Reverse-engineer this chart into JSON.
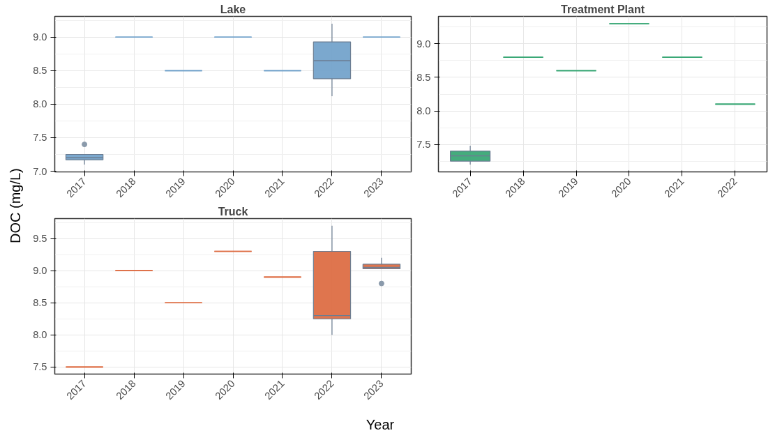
{
  "chart_data": [
    {
      "type": "box",
      "title": "Lake",
      "ylabel": "DOC (mg/L)",
      "categories": [
        "2017",
        "2018",
        "2019",
        "2020",
        "2021",
        "2022",
        "2023"
      ],
      "color": "#74a3cb",
      "ylim": [
        6.99,
        9.31
      ],
      "yticks": [
        {
          "value": 7.0,
          "label": "7.0"
        },
        {
          "value": 7.5,
          "label": "7.5"
        },
        {
          "value": 8.0,
          "label": "8.0"
        },
        {
          "value": 8.5,
          "label": "8.5"
        },
        {
          "value": 9.0,
          "label": "9.0"
        }
      ],
      "grid": true,
      "boxes": [
        {
          "low": 7.1,
          "q1": 7.17,
          "median": 7.2,
          "q3": 7.25,
          "high": 7.25,
          "outliers": [
            7.4
          ]
        },
        {
          "low": 9.0,
          "q1": 9.0,
          "median": 9.0,
          "q3": 9.0,
          "high": 9.0
        },
        {
          "low": 8.5,
          "q1": 8.5,
          "median": 8.5,
          "q3": 8.5,
          "high": 8.5
        },
        {
          "low": 9.0,
          "q1": 9.0,
          "median": 9.0,
          "q3": 9.0,
          "high": 9.0
        },
        {
          "low": 8.5,
          "q1": 8.5,
          "median": 8.5,
          "q3": 8.5,
          "high": 8.5
        },
        {
          "low": 8.12,
          "q1": 8.38,
          "median": 8.65,
          "q3": 8.93,
          "high": 9.2
        },
        {
          "low": 9.0,
          "q1": 9.0,
          "median": 9.0,
          "q3": 9.0,
          "high": 9.0
        }
      ]
    },
    {
      "type": "box",
      "title": "Treatment Plant",
      "categories": [
        "2017",
        "2018",
        "2019",
        "2020",
        "2021",
        "2022"
      ],
      "color": "#3aa876",
      "ylim": [
        7.09,
        9.41
      ],
      "yticks": [
        {
          "value": 7.5,
          "label": "7.5"
        },
        {
          "value": 8.0,
          "label": "8.0"
        },
        {
          "value": 8.5,
          "label": "8.5"
        },
        {
          "value": 9.0,
          "label": "9.0"
        }
      ],
      "grid": true,
      "boxes": [
        {
          "low": 7.2,
          "q1": 7.25,
          "median": 7.33,
          "q3": 7.4,
          "high": 7.48
        },
        {
          "low": 8.8,
          "q1": 8.8,
          "median": 8.8,
          "q3": 8.8,
          "high": 8.8
        },
        {
          "low": 8.6,
          "q1": 8.6,
          "median": 8.6,
          "q3": 8.6,
          "high": 8.6
        },
        {
          "low": 9.3,
          "q1": 9.3,
          "median": 9.3,
          "q3": 9.3,
          "high": 9.3
        },
        {
          "low": 8.8,
          "q1": 8.8,
          "median": 8.8,
          "q3": 8.8,
          "high": 8.8
        },
        {
          "low": 8.1,
          "q1": 8.1,
          "median": 8.1,
          "q3": 8.1,
          "high": 8.1
        }
      ]
    },
    {
      "type": "box",
      "title": "Truck",
      "xlabel": "Year",
      "categories": [
        "2017",
        "2018",
        "2019",
        "2020",
        "2021",
        "2022",
        "2023"
      ],
      "color": "#dd6e45",
      "ylim": [
        7.39,
        9.81
      ],
      "yticks": [
        {
          "value": 7.5,
          "label": "7.5"
        },
        {
          "value": 8.0,
          "label": "8.0"
        },
        {
          "value": 8.5,
          "label": "8.5"
        },
        {
          "value": 9.0,
          "label": "9.0"
        },
        {
          "value": 9.5,
          "label": "9.5"
        }
      ],
      "grid": true,
      "boxes": [
        {
          "low": 7.5,
          "q1": 7.5,
          "median": 7.5,
          "q3": 7.5,
          "high": 7.5
        },
        {
          "low": 9.0,
          "q1": 9.0,
          "median": 9.0,
          "q3": 9.0,
          "high": 9.0
        },
        {
          "low": 8.5,
          "q1": 8.5,
          "median": 8.5,
          "q3": 8.5,
          "high": 8.5
        },
        {
          "low": 9.3,
          "q1": 9.3,
          "median": 9.3,
          "q3": 9.3,
          "high": 9.3
        },
        {
          "low": 8.9,
          "q1": 8.9,
          "median": 8.9,
          "q3": 8.9,
          "high": 8.9
        },
        {
          "low": 8.0,
          "q1": 8.25,
          "median": 8.3,
          "q3": 9.3,
          "high": 9.7
        },
        {
          "low": 9.03,
          "q1": 9.03,
          "median": 9.05,
          "q3": 9.1,
          "high": 9.2,
          "outliers": [
            8.8
          ]
        }
      ]
    }
  ]
}
